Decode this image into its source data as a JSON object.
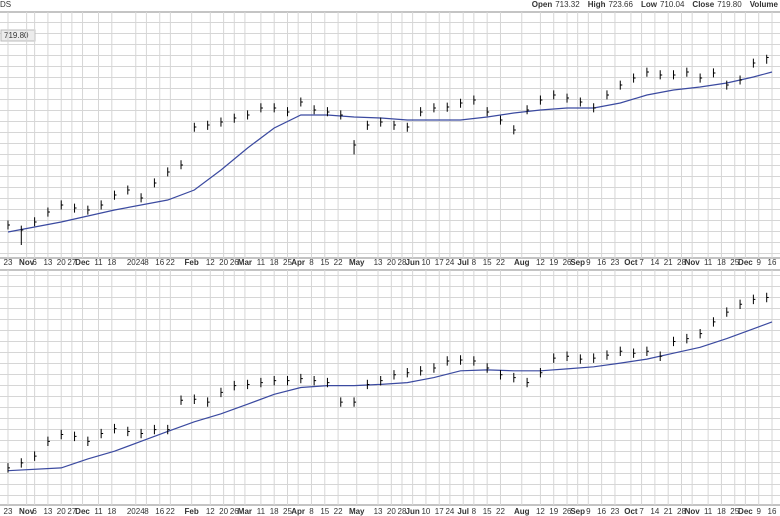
{
  "header": {
    "symbol": "DS",
    "fields": [
      {
        "name": "Open",
        "value": "713.32"
      },
      {
        "name": "High",
        "value": "723.66"
      },
      {
        "name": "Low",
        "value": "710.04"
      },
      {
        "name": "Close",
        "value": "719.80"
      },
      {
        "name": "Volume"
      }
    ]
  },
  "chart_data": [
    {
      "type": "ohlc",
      "last_label": "719.80",
      "color": "#000000",
      "grid": true,
      "xlim": [
        -3,
        290
      ],
      "ylim": [
        410,
        790
      ],
      "xticks": [
        {
          "value": 0,
          "label": "23"
        },
        {
          "value": 7,
          "label": "Nov"
        },
        {
          "value": 10,
          "label": "6"
        },
        {
          "value": 15,
          "label": "13"
        },
        {
          "value": 20,
          "label": "20"
        },
        {
          "value": 24,
          "label": "27"
        },
        {
          "value": 28,
          "label": "Dec"
        },
        {
          "value": 34,
          "label": "11"
        },
        {
          "value": 39,
          "label": "18"
        },
        {
          "value": 48,
          "label": "2024"
        },
        {
          "value": 52,
          "label": "8"
        },
        {
          "value": 57,
          "label": "16"
        },
        {
          "value": 61,
          "label": "22"
        },
        {
          "value": 69,
          "label": "Feb"
        },
        {
          "value": 76,
          "label": "12"
        },
        {
          "value": 81,
          "label": "20"
        },
        {
          "value": 85,
          "label": "26"
        },
        {
          "value": 89,
          "label": "Mar"
        },
        {
          "value": 95,
          "label": "11"
        },
        {
          "value": 100,
          "label": "18"
        },
        {
          "value": 105,
          "label": "25"
        },
        {
          "value": 109,
          "label": "Apr"
        },
        {
          "value": 114,
          "label": "8"
        },
        {
          "value": 119,
          "label": "15"
        },
        {
          "value": 124,
          "label": "22"
        },
        {
          "value": 131,
          "label": "May"
        },
        {
          "value": 139,
          "label": "13"
        },
        {
          "value": 144,
          "label": "20"
        },
        {
          "value": 148,
          "label": "28"
        },
        {
          "value": 152,
          "label": "Jun"
        },
        {
          "value": 157,
          "label": "10"
        },
        {
          "value": 162,
          "label": "17"
        },
        {
          "value": 166,
          "label": "24"
        },
        {
          "value": 171,
          "label": "Jul"
        },
        {
          "value": 175,
          "label": "8"
        },
        {
          "value": 180,
          "label": "15"
        },
        {
          "value": 185,
          "label": "22"
        },
        {
          "value": 193,
          "label": "Aug"
        },
        {
          "value": 200,
          "label": "12"
        },
        {
          "value": 205,
          "label": "19"
        },
        {
          "value": 210,
          "label": "26"
        },
        {
          "value": 214,
          "label": "Sep"
        },
        {
          "value": 218,
          "label": "9"
        },
        {
          "value": 223,
          "label": "16"
        },
        {
          "value": 228,
          "label": "23"
        },
        {
          "value": 234,
          "label": "Oct"
        },
        {
          "value": 238,
          "label": "7"
        },
        {
          "value": 243,
          "label": "14"
        },
        {
          "value": 248,
          "label": "21"
        },
        {
          "value": 253,
          "label": "28"
        },
        {
          "value": 257,
          "label": "Nov"
        },
        {
          "value": 263,
          "label": "11"
        },
        {
          "value": 268,
          "label": "18"
        },
        {
          "value": 273,
          "label": "25"
        },
        {
          "value": 277,
          "label": "Dec"
        },
        {
          "value": 282,
          "label": "9"
        },
        {
          "value": 287,
          "label": "16"
        }
      ],
      "x": [
        0,
        5,
        10,
        15,
        20,
        25,
        30,
        35,
        40,
        45,
        50,
        55,
        60,
        65,
        70,
        75,
        80,
        85,
        90,
        95,
        100,
        105,
        110,
        115,
        120,
        125,
        130,
        135,
        140,
        145,
        150,
        155,
        160,
        165,
        170,
        175,
        180,
        185,
        190,
        195,
        200,
        205,
        210,
        215,
        220,
        225,
        230,
        235,
        240,
        245,
        250,
        255,
        260,
        265,
        270,
        275,
        280,
        285
      ],
      "high": [
        468,
        460,
        473,
        488,
        499,
        494,
        491,
        499,
        514,
        522,
        510,
        533,
        550,
        561,
        619,
        622,
        627,
        633,
        638,
        649,
        649,
        643,
        658,
        646,
        643,
        638,
        592,
        622,
        627,
        622,
        619,
        643,
        649,
        650,
        656,
        661,
        643,
        630,
        615,
        646,
        661,
        669,
        664,
        658,
        649,
        669,
        684,
        695,
        704,
        700,
        700,
        704,
        695,
        703,
        684,
        692,
        718,
        724
      ],
      "low": [
        454,
        430,
        459,
        474,
        485,
        480,
        477,
        485,
        500,
        508,
        496,
        519,
        536,
        547,
        605,
        608,
        613,
        619,
        624,
        635,
        635,
        629,
        644,
        632,
        629,
        624,
        570,
        608,
        613,
        608,
        605,
        629,
        635,
        636,
        642,
        647,
        629,
        616,
        601,
        632,
        647,
        655,
        650,
        644,
        635,
        655,
        670,
        681,
        690,
        686,
        686,
        690,
        681,
        689,
        670,
        678,
        704,
        710
      ],
      "close": [
        461.0,
        453.3,
        465.6,
        481.1,
        491.9,
        487.2,
        484.1,
        491.9,
        507.3,
        515.0,
        502.7,
        525.9,
        542.8,
        553.7,
        612.4,
        615.4,
        620.1,
        626.3,
        630.9,
        641.7,
        641.7,
        635.5,
        651.0,
        638.6,
        635.5,
        630.9,
        584.6,
        615.4,
        620.1,
        615.4,
        612.4,
        635.5,
        641.7,
        643.3,
        649.4,
        654.1,
        635.5,
        623.2,
        607.7,
        638.6,
        654.1,
        661.8,
        657.2,
        651.0,
        641.7,
        661.8,
        677.2,
        688.1,
        697.3,
        692.7,
        692.7,
        697.3,
        688.1,
        695.8,
        677.2,
        685.0,
        711.2,
        719.8
      ],
      "ma": {
        "color": "#3b4aa0",
        "x": [
          0,
          20,
          40,
          60,
          70,
          80,
          90,
          100,
          110,
          120,
          130,
          140,
          150,
          160,
          170,
          180,
          190,
          200,
          210,
          220,
          230,
          240,
          250,
          260,
          270,
          280,
          287
        ],
        "values": [
          450.2,
          465.6,
          484.1,
          499.6,
          515.0,
          545.9,
          579.9,
          610.8,
          630.9,
          630.9,
          627.8,
          626.3,
          623.2,
          623.2,
          623.2,
          627.8,
          634.0,
          638.6,
          641.7,
          641.7,
          649.4,
          661.8,
          669.5,
          674.1,
          680.3,
          689.6,
          697.3
        ]
      }
    },
    {
      "type": "ohlc",
      "color": "#000000",
      "grid": true,
      "xlim": [
        -3,
        290
      ],
      "ylim": [
        0,
        100
      ],
      "x": [
        0,
        5,
        10,
        15,
        20,
        25,
        30,
        35,
        40,
        45,
        50,
        55,
        60,
        65,
        70,
        75,
        80,
        85,
        90,
        95,
        100,
        105,
        110,
        115,
        120,
        125,
        130,
        135,
        140,
        145,
        150,
        155,
        160,
        165,
        170,
        175,
        180,
        185,
        190,
        195,
        200,
        205,
        210,
        215,
        220,
        225,
        230,
        235,
        240,
        245,
        250,
        255,
        260,
        265,
        270,
        275,
        280,
        285
      ],
      "high": [
        17.8,
        19.9,
        22.8,
        29.1,
        32.0,
        31.2,
        29.1,
        32.4,
        34.5,
        33.3,
        32.4,
        34.1,
        34.1,
        46.6,
        47.0,
        45.8,
        49.9,
        52.8,
        53.3,
        54.1,
        54.9,
        54.9,
        55.8,
        54.9,
        54.1,
        45.8,
        45.8,
        53.3,
        54.9,
        57.4,
        58.3,
        59.1,
        60.3,
        63.3,
        63.7,
        63.3,
        60.3,
        57.4,
        56.2,
        54.1,
        58.3,
        64.5,
        65.3,
        64.1,
        64.5,
        65.8,
        67.4,
        66.6,
        67.4,
        65.3,
        71.6,
        72.8,
        74.9,
        79.9,
        84.1,
        87.4,
        89.5,
        90.3
      ],
      "low": [
        13.8,
        15.9,
        18.8,
        25.1,
        28.0,
        27.2,
        25.1,
        28.4,
        30.5,
        29.3,
        28.4,
        30.1,
        30.1,
        42.6,
        43.0,
        41.8,
        45.9,
        48.8,
        49.3,
        50.1,
        50.9,
        50.9,
        51.8,
        50.9,
        50.1,
        41.8,
        41.8,
        49.3,
        50.9,
        53.4,
        54.3,
        55.1,
        56.3,
        59.3,
        59.7,
        59.3,
        56.3,
        53.4,
        52.2,
        50.1,
        54.3,
        60.5,
        61.3,
        60.1,
        60.5,
        61.8,
        63.4,
        62.6,
        63.4,
        61.3,
        67.6,
        68.8,
        70.9,
        75.9,
        80.1,
        83.4,
        85.5,
        86.3
      ],
      "close": [
        15.8,
        17.9,
        20.8,
        27.1,
        30.0,
        29.2,
        27.1,
        30.4,
        32.5,
        31.3,
        30.4,
        32.1,
        32.1,
        44.6,
        45.0,
        43.8,
        47.9,
        50.8,
        51.3,
        52.1,
        52.9,
        52.9,
        53.8,
        52.9,
        52.1,
        43.8,
        43.8,
        51.3,
        52.9,
        55.4,
        56.3,
        57.1,
        58.3,
        61.3,
        61.7,
        61.3,
        58.3,
        55.4,
        54.2,
        52.1,
        56.3,
        62.5,
        63.3,
        62.1,
        62.5,
        63.8,
        65.4,
        64.6,
        65.4,
        63.3,
        69.6,
        70.8,
        72.9,
        77.9,
        82.1,
        85.4,
        87.5,
        88.3
      ],
      "ma": {
        "color": "#3b4aa0",
        "x": [
          0,
          20,
          30,
          40,
          50,
          60,
          70,
          80,
          90,
          100,
          110,
          120,
          130,
          140,
          150,
          160,
          170,
          180,
          190,
          200,
          210,
          220,
          230,
          240,
          250,
          260,
          270,
          280,
          287
        ],
        "values": [
          14.6,
          15.8,
          19.6,
          22.9,
          27.1,
          31.3,
          35.4,
          38.8,
          42.9,
          47.1,
          50.0,
          50.8,
          50.8,
          51.3,
          52.1,
          54.2,
          57.1,
          57.5,
          57.1,
          57.1,
          57.9,
          58.8,
          60.4,
          62.1,
          64.6,
          67.1,
          70.8,
          75.0,
          77.9
        ]
      }
    }
  ]
}
